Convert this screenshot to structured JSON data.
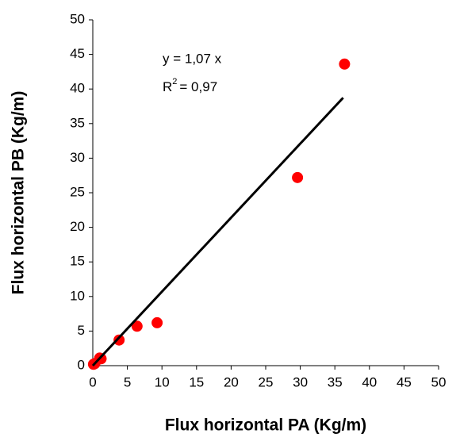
{
  "chart_data": {
    "type": "scatter",
    "x_label": "Flux horizontal PA (Kg/m)",
    "y_label": "Flux horizontal PB (Kg/m)",
    "series": [
      {
        "color": "#ff0000",
        "x": [
          0.1,
          0.3,
          1.0,
          1.2,
          3.8,
          6.4,
          9.3,
          29.6,
          36.4
        ],
        "values": [
          0.2,
          0.3,
          1.1,
          1.0,
          3.7,
          5.7,
          6.2,
          27.2,
          43.6
        ]
      }
    ],
    "trendline": {
      "slope": 1.07,
      "xlim": [
        0,
        36.2
      ],
      "color": "#000000",
      "equation": "y = 1,07 x",
      "r2_prefix": "R",
      "r2_sup": "2",
      "r2_value": "= 0,97"
    },
    "xlim": [
      0,
      50
    ],
    "xticks": [
      0,
      5,
      10,
      15,
      20,
      25,
      30,
      35,
      40,
      45,
      50
    ],
    "ylim": [
      0,
      50
    ],
    "yticks": [
      0,
      5,
      10,
      15,
      20,
      25,
      30,
      35,
      40,
      45,
      50
    ],
    "grid": false
  }
}
